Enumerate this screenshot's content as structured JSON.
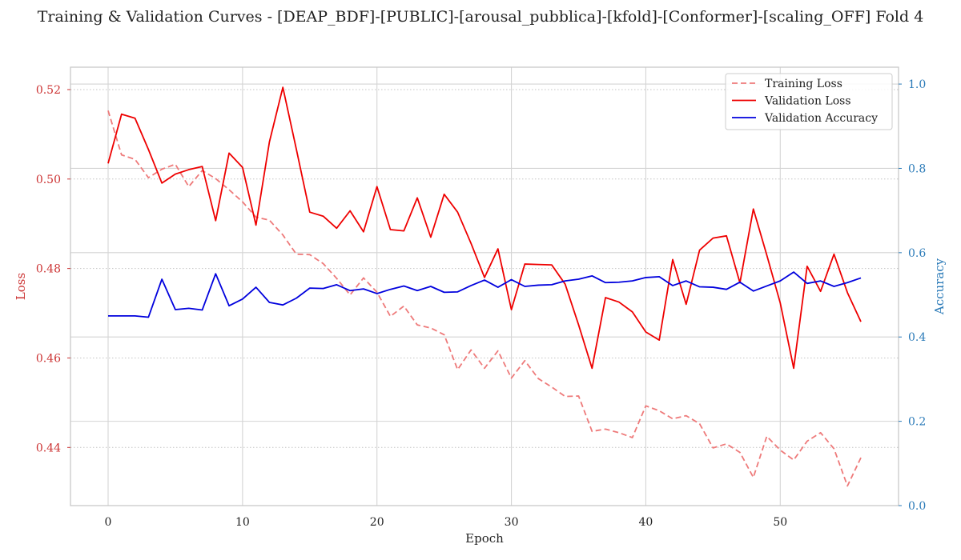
{
  "chart_data": {
    "type": "line",
    "title": "Training & Validation Curves - [DEAP_BDF]-[PUBLIC]-[arousal_pubblica]-[kfold]-[Conformer]-[scaling_OFF] Fold 4",
    "xlabel": "Epoch",
    "ylabel_left": "Loss",
    "ylabel_right": "Accuracy",
    "xlim": [
      -2.8,
      58.8
    ],
    "ylim_left": [
      0.427,
      0.525
    ],
    "ylim_right": [
      0.0,
      1.04
    ],
    "x_ticks": [
      0,
      10,
      20,
      30,
      40,
      50
    ],
    "y_left_ticks": [
      0.44,
      0.46,
      0.48,
      0.5,
      0.52
    ],
    "y_left_tick_labels": [
      "0.44",
      "0.46",
      "0.48",
      "0.50",
      "0.52"
    ],
    "y_right_ticks": [
      0.0,
      0.2,
      0.4,
      0.6,
      0.8,
      1.0
    ],
    "y_right_tick_labels": [
      "0.0",
      "0.2",
      "0.4",
      "0.6",
      "0.8",
      "1.0"
    ],
    "grid": true,
    "legend_position": "top-right",
    "colors": {
      "training_loss": "#ee7a7a",
      "validation_loss": "#ee0000",
      "validation_accuracy": "#0000dd",
      "left_axis": "#cc3333",
      "right_axis": "#2a7ab8"
    },
    "x": [
      0,
      1,
      2,
      3,
      4,
      5,
      6,
      7,
      8,
      9,
      10,
      11,
      12,
      13,
      14,
      15,
      16,
      17,
      18,
      19,
      20,
      21,
      22,
      23,
      24,
      25,
      26,
      27,
      28,
      29,
      30,
      31,
      32,
      33,
      34,
      35,
      36,
      37,
      38,
      39,
      40,
      41,
      42,
      43,
      44,
      45,
      46,
      47,
      48,
      49,
      50,
      51,
      52,
      53,
      54,
      55,
      56
    ],
    "series": [
      {
        "name": "Training Loss",
        "axis": "left",
        "style": "dashed",
        "values": [
          0.5153,
          0.5054,
          0.5044,
          0.5003,
          0.5022,
          0.5033,
          0.4983,
          0.5019,
          0.5001,
          0.4976,
          0.4949,
          0.4915,
          0.4908,
          0.4875,
          0.4832,
          0.4831,
          0.4811,
          0.4778,
          0.4741,
          0.4779,
          0.4747,
          0.4693,
          0.4716,
          0.4674,
          0.4667,
          0.4652,
          0.4574,
          0.4618,
          0.4577,
          0.4616,
          0.4555,
          0.4594,
          0.4554,
          0.4535,
          0.4514,
          0.4515,
          0.4436,
          0.4441,
          0.4433,
          0.4422,
          0.4493,
          0.4482,
          0.4464,
          0.4471,
          0.4453,
          0.4399,
          0.4408,
          0.4389,
          0.4333,
          0.4425,
          0.4394,
          0.4372,
          0.4414,
          0.4433,
          0.4397,
          0.4314,
          0.4377
        ]
      },
      {
        "name": "Validation Loss",
        "axis": "left",
        "style": "solid",
        "values": [
          0.5035,
          0.5145,
          0.5136,
          0.5066,
          0.4991,
          0.5011,
          0.5021,
          0.5028,
          0.4907,
          0.5058,
          0.5026,
          0.4897,
          0.5083,
          0.5205,
          0.5067,
          0.4926,
          0.4917,
          0.489,
          0.4929,
          0.4882,
          0.4983,
          0.4887,
          0.4884,
          0.4958,
          0.487,
          0.4966,
          0.4926,
          0.4856,
          0.478,
          0.4844,
          0.4708,
          0.481,
          0.4809,
          0.4808,
          0.4765,
          0.4674,
          0.4577,
          0.4735,
          0.4725,
          0.4703,
          0.4658,
          0.464,
          0.482,
          0.472,
          0.4841,
          0.4868,
          0.4873,
          0.4768,
          0.4933,
          0.483,
          0.4723,
          0.4577,
          0.4805,
          0.4749,
          0.4832,
          0.4746,
          0.4681
        ]
      },
      {
        "name": "Validation Accuracy",
        "axis": "right",
        "style": "solid",
        "values": [
          0.45,
          0.45,
          0.45,
          0.447,
          0.537,
          0.465,
          0.468,
          0.464,
          0.55,
          0.474,
          0.49,
          0.518,
          0.482,
          0.476,
          0.492,
          0.516,
          0.515,
          0.524,
          0.51,
          0.514,
          0.503,
          0.513,
          0.521,
          0.51,
          0.52,
          0.506,
          0.507,
          0.522,
          0.535,
          0.518,
          0.536,
          0.52,
          0.523,
          0.524,
          0.533,
          0.537,
          0.545,
          0.529,
          0.53,
          0.533,
          0.541,
          0.543,
          0.522,
          0.533,
          0.519,
          0.518,
          0.513,
          0.53,
          0.509,
          0.521,
          0.533,
          0.554,
          0.527,
          0.533,
          0.52,
          0.529,
          0.54
        ]
      }
    ]
  }
}
